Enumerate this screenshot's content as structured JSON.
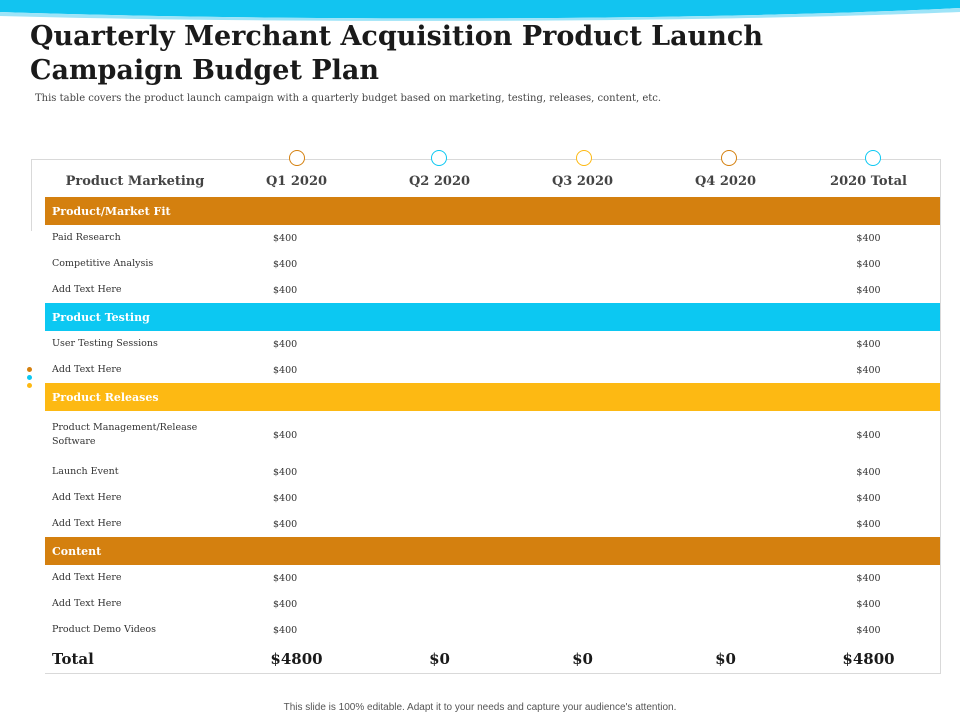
{
  "title": "Quarterly Merchant Acquisition Product Launch Campaign Budget Plan",
  "subtitle": "This table covers  the product launch campaign  with a quarterly  budget based on marketing,  testing, releases,  content,  etc.",
  "colors": {
    "orange": "#D4800F",
    "cyan": "#0CC8F2",
    "yellow": "#FDB913",
    "blue_accent": "#3BA9E0"
  },
  "table": {
    "headers": [
      "Product Marketing",
      "Q1 2020",
      "Q2 2020",
      "Q3 2020",
      "Q4 2020",
      "2020 Total"
    ],
    "sections": [
      {
        "title": "Product/Market Fit",
        "rows": [
          {
            "label": "Paid Research",
            "q1": "$400",
            "total": "$400"
          },
          {
            "label": "Competitive Analysis",
            "q1": "$400",
            "total": "$400"
          },
          {
            "label": "Add Text Here",
            "q1": "$400",
            "total": "$400"
          }
        ]
      },
      {
        "title": "Product Testing",
        "rows": [
          {
            "label": "User Testing Sessions",
            "q1": "$400",
            "total": "$400"
          },
          {
            "label": "Add Text Here",
            "q1": "$400",
            "total": "$400"
          }
        ]
      },
      {
        "title": "Product Releases",
        "rows": [
          {
            "label": "Product Management/Release Software",
            "q1": "$400",
            "total": "$400"
          },
          {
            "label": "Launch Event",
            "q1": "$400",
            "total": "$400"
          },
          {
            "label": "Add Text Here",
            "q1": "$400",
            "total": "$400"
          },
          {
            "label": "Add Text Here",
            "q1": "$400",
            "total": "$400"
          }
        ]
      },
      {
        "title": "Content",
        "rows": [
          {
            "label": "Add Text Here",
            "q1": "$400",
            "total": "$400"
          },
          {
            "label": "Add Text Here",
            "q1": "$400",
            "total": "$400"
          },
          {
            "label": "Product Demo Videos",
            "q1": "$400",
            "total": "$400"
          }
        ]
      }
    ],
    "total_row": [
      "Total",
      "$4800",
      "$0",
      "$0",
      "$0",
      "$4800"
    ]
  },
  "footer": "This slide is 100% editable.  Adapt it to your needs and capture your audience's attention."
}
